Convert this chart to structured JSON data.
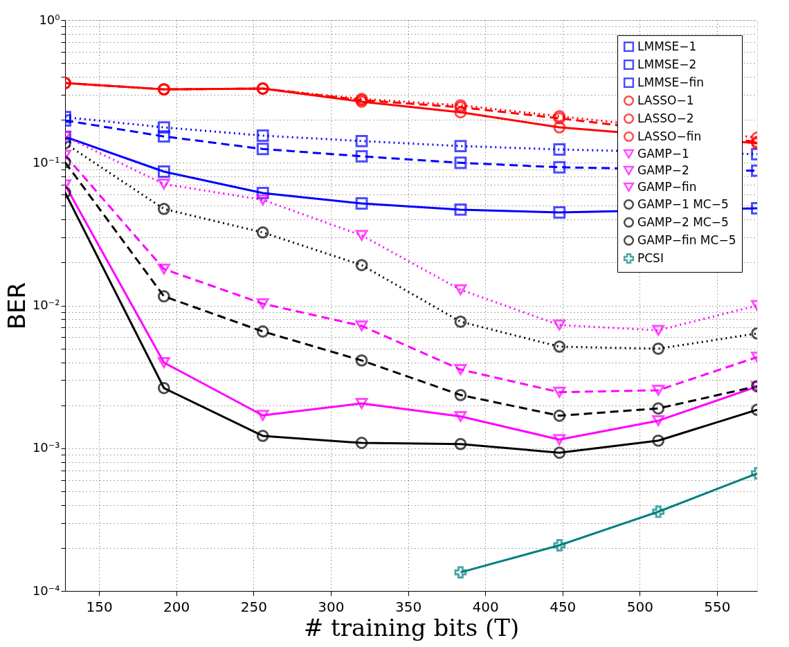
{
  "chart_data": {
    "type": "line",
    "xlabel": "# training bits (T)",
    "ylabel": "BER",
    "x": [
      128,
      192,
      256,
      320,
      384,
      448,
      512,
      576
    ],
    "xlim": [
      128,
      576
    ],
    "xticks": [
      150,
      200,
      250,
      300,
      350,
      400,
      450,
      500,
      550
    ],
    "ylim": [
      0.0001,
      1
    ],
    "log": "y",
    "grid": true,
    "legend": "top right",
    "yticks": [
      {
        "value": 0.0001,
        "label": "10⁻⁴"
      },
      {
        "value": 0.0002,
        "label": null
      },
      {
        "value": 0.0003,
        "label": null
      },
      {
        "value": 0.0004,
        "label": null
      },
      {
        "value": 0.0005,
        "label": null
      },
      {
        "value": 0.0006,
        "label": null
      },
      {
        "value": 0.0007,
        "label": null
      },
      {
        "value": 0.0008,
        "label": null
      },
      {
        "value": 0.0009,
        "label": null
      },
      {
        "value": 0.001,
        "label": "10⁻³"
      },
      {
        "value": 0.002,
        "label": null
      },
      {
        "value": 0.003,
        "label": null
      },
      {
        "value": 0.004,
        "label": null
      },
      {
        "value": 0.005,
        "label": null
      },
      {
        "value": 0.006,
        "label": null
      },
      {
        "value": 0.007,
        "label": null
      },
      {
        "value": 0.008,
        "label": null
      },
      {
        "value": 0.009,
        "label": null
      },
      {
        "value": 0.01,
        "label": "10⁻²"
      },
      {
        "value": 0.02,
        "label": null
      },
      {
        "value": 0.03,
        "label": null
      },
      {
        "value": 0.04,
        "label": null
      },
      {
        "value": 0.05,
        "label": null
      },
      {
        "value": 0.06,
        "label": null
      },
      {
        "value": 0.07,
        "label": null
      },
      {
        "value": 0.08,
        "label": null
      },
      {
        "value": 0.09,
        "label": null
      },
      {
        "value": 0.1,
        "label": "10⁻¹"
      },
      {
        "value": 0.2,
        "label": null
      },
      {
        "value": 0.3,
        "label": null
      },
      {
        "value": 0.4,
        "label": null
      },
      {
        "value": 0.5,
        "label": null
      },
      {
        "value": 0.6,
        "label": null
      },
      {
        "value": 0.7,
        "label": null
      },
      {
        "value": 0.8,
        "label": null
      },
      {
        "value": 0.9,
        "label": null
      },
      {
        "value": 1,
        "label": "10⁰"
      }
    ],
    "series": [
      {
        "name": "LMMSE−1",
        "color": "#0000ff",
        "marker": "square",
        "line_style": "dotted",
        "values": [
          0.209,
          0.177,
          0.155,
          0.142,
          0.131,
          0.124,
          null,
          0.115
        ]
      },
      {
        "name": "LMMSE−2",
        "color": "#0000ff",
        "marker": "square",
        "line_style": "dashed",
        "values": [
          0.198,
          0.153,
          0.125,
          0.111,
          0.1,
          0.093,
          null,
          0.088
        ]
      },
      {
        "name": "LMMSE−fin",
        "color": "#0000ff",
        "marker": "square",
        "line_style": "solid",
        "values": [
          0.152,
          0.0867,
          0.0614,
          0.0519,
          0.047,
          0.0449,
          null,
          0.048
        ]
      },
      {
        "name": "LASSO−1",
        "color": "#ff0000",
        "marker": "circle",
        "line_style": "dotted",
        "values": [
          0.362,
          0.327,
          0.331,
          0.28,
          0.253,
          0.212,
          null,
          0.15
        ]
      },
      {
        "name": "LASSO−2",
        "color": "#ff0000",
        "marker": "circle",
        "line_style": "dashed",
        "values": [
          0.362,
          0.327,
          0.331,
          0.275,
          0.245,
          0.205,
          null,
          0.14
        ]
      },
      {
        "name": "LASSO−fin",
        "color": "#ff0000",
        "marker": "circle",
        "line_style": "solid",
        "values": [
          0.362,
          0.327,
          0.331,
          0.268,
          0.226,
          0.177,
          null,
          0.137
        ]
      },
      {
        "name": "GAMP−1",
        "color": "#ff00ff",
        "marker": "triangle",
        "line_style": "dotted",
        "values": [
          0.153,
          0.071,
          0.055,
          0.031,
          0.0129,
          0.0073,
          0.0067,
          0.01
        ]
      },
      {
        "name": "GAMP−2",
        "color": "#ff00ff",
        "marker": "triangle",
        "line_style": "dashed",
        "values": [
          0.113,
          0.018,
          0.0103,
          0.0072,
          0.00356,
          0.00247,
          0.00255,
          0.00435
        ]
      },
      {
        "name": "GAMP−fin",
        "color": "#ff00ff",
        "marker": "triangle",
        "line_style": "solid",
        "values": [
          0.07,
          0.00398,
          0.0017,
          0.00206,
          0.00167,
          0.00115,
          0.00156,
          0.0027
        ]
      },
      {
        "name": "GAMP−1 MC−5",
        "color": "#000000",
        "marker": "circle",
        "line_style": "dotted",
        "values": [
          0.137,
          0.0475,
          0.0325,
          0.0192,
          0.0077,
          0.00515,
          0.00498,
          0.00637
        ]
      },
      {
        "name": "GAMP−2 MC−5",
        "color": "#000000",
        "marker": "circle",
        "line_style": "dashed",
        "values": [
          0.101,
          0.0116,
          0.00658,
          0.00412,
          0.00236,
          0.00169,
          0.0019,
          0.00272
        ]
      },
      {
        "name": "GAMP−fin MC−5",
        "color": "#000000",
        "marker": "circle",
        "line_style": "solid",
        "values": [
          0.062,
          0.00264,
          0.00122,
          0.00109,
          0.00107,
          0.00093,
          0.00113,
          0.00186
        ]
      },
      {
        "name": "PCSI",
        "color": "#008080",
        "marker": "cross",
        "line_style": "solid",
        "values": [
          null,
          null,
          null,
          null,
          0.000135,
          0.000209,
          0.000359,
          0.000667
        ]
      }
    ]
  }
}
